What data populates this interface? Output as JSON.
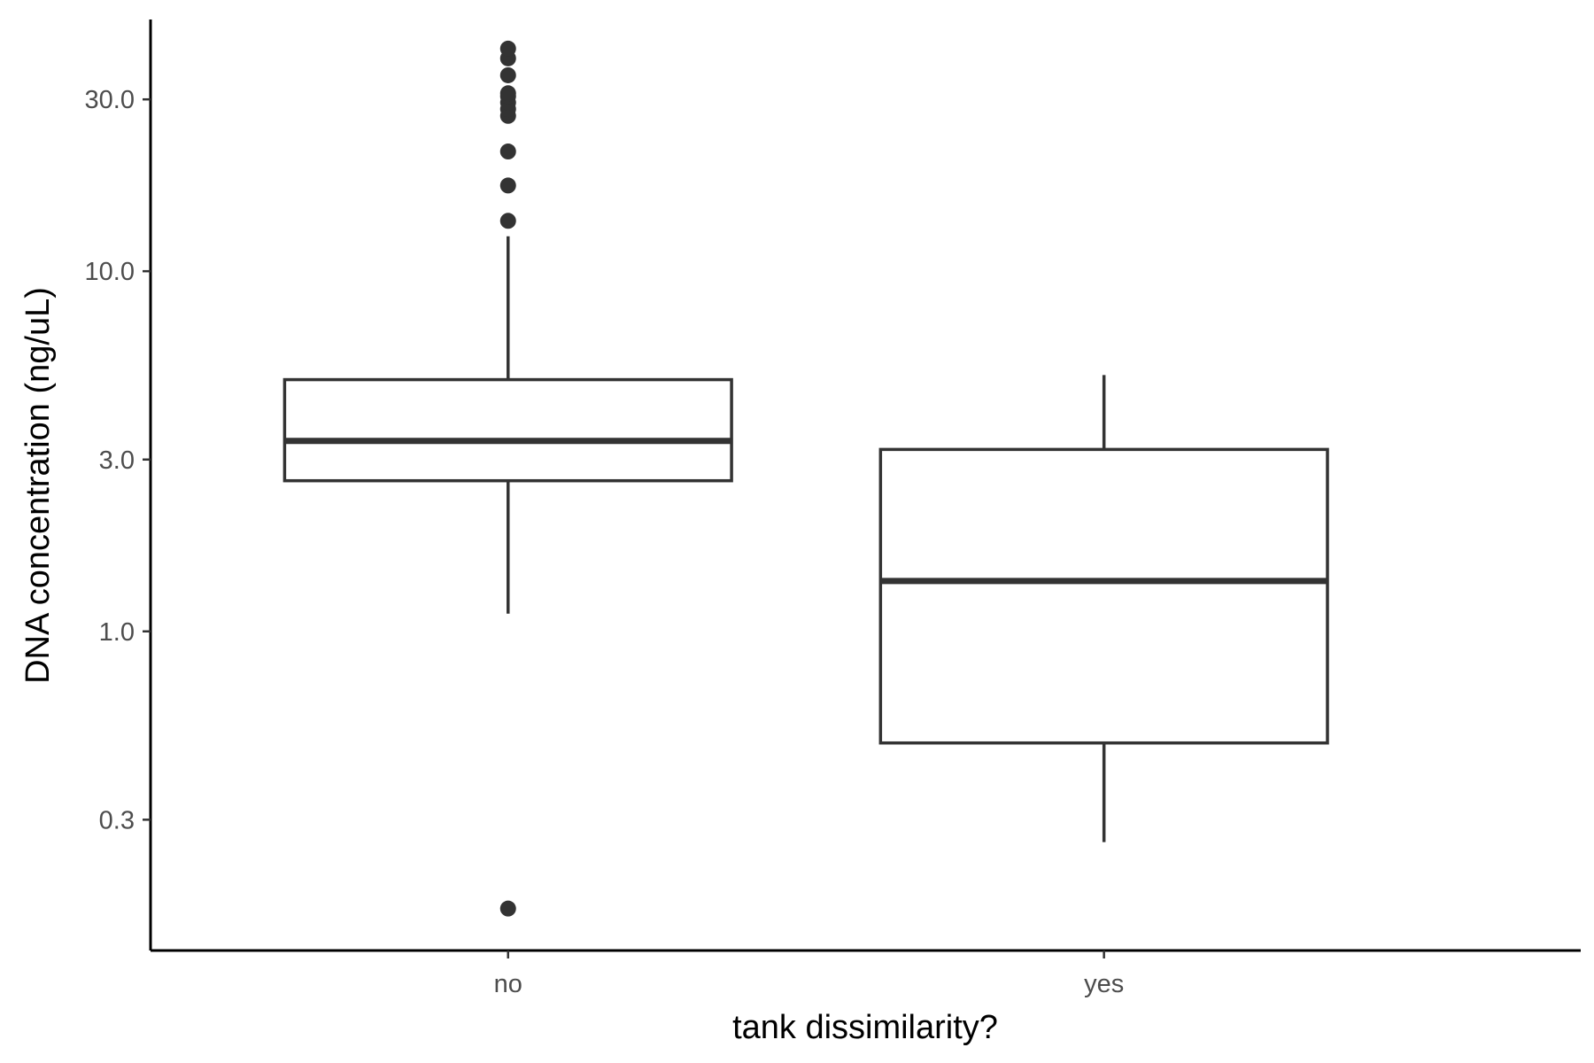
{
  "chart_data": {
    "type": "box",
    "title": "",
    "xlabel": "tank dissimilarity?",
    "ylabel": "DNA concentration (ng/uL)",
    "y_scale": "log10",
    "ylim": [
      0.13,
      50
    ],
    "y_ticks": [
      {
        "value": 0.3,
        "label": "0.3"
      },
      {
        "value": 1.0,
        "label": "1.0"
      },
      {
        "value": 3.0,
        "label": "3.0"
      },
      {
        "value": 10.0,
        "label": "10.0"
      },
      {
        "value": 30.0,
        "label": "30.0"
      }
    ],
    "categories": [
      "no",
      "yes"
    ],
    "boxes": [
      {
        "category": "no",
        "whisker_low": 1.12,
        "q1": 2.62,
        "median": 3.38,
        "q3": 5.0,
        "whisker_high": 12.5,
        "outliers": [
          0.17,
          13.8,
          17.3,
          21.5,
          27.0,
          28.2,
          29.4,
          30.6,
          31.2,
          35.0,
          39.0,
          41.5
        ]
      },
      {
        "category": "yes",
        "whisker_low": 0.26,
        "q1": 0.49,
        "median": 1.38,
        "q3": 3.2,
        "whisker_high": 5.15,
        "outliers": []
      }
    ],
    "grid": false,
    "legend": "none"
  }
}
